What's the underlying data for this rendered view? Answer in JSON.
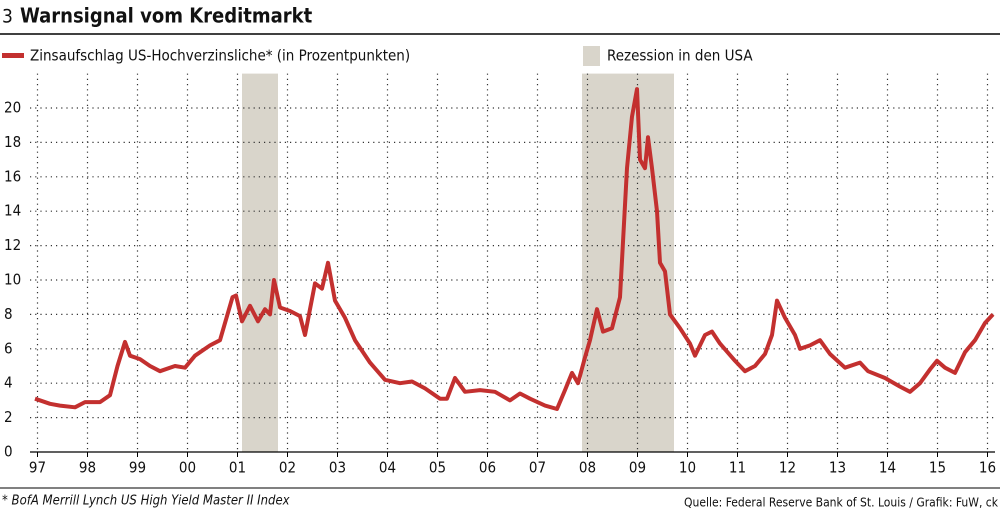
{
  "chart_data": {
    "type": "line",
    "number": "3",
    "title": "Warnsignal vom Kreditmarkt",
    "footnote": "* BofA Merrill Lynch US High Yield Master II Index",
    "source": "Quelle: Federal Reserve Bank of St. Louis / Grafik: FuW, ck",
    "shade_label": "Rezession in den USA",
    "shade_color": "#d9d5cb",
    "shades": [
      [
        2001.09,
        2001.81
      ],
      [
        2007.89,
        2009.73
      ]
    ],
    "x": [
      1996.95,
      1997.25,
      1997.45,
      1997.75,
      1997.95,
      1998.25,
      1998.45,
      1998.6,
      1998.75,
      1998.85,
      1999.05,
      1999.25,
      1999.45,
      1999.75,
      1999.95,
      2000.15,
      2000.45,
      2000.65,
      2000.9,
      2000.97,
      2001.09,
      2001.25,
      2001.41,
      2001.55,
      2001.65,
      2001.73,
      2001.85,
      2002.05,
      2002.25,
      2002.35,
      2002.55,
      2002.69,
      2002.81,
      2002.95,
      2003.15,
      2003.35,
      2003.65,
      2003.95,
      2004.25,
      2004.49,
      2004.75,
      2005.05,
      2005.19,
      2005.35,
      2005.55,
      2005.85,
      2006.15,
      2006.45,
      2006.65,
      2006.85,
      2007.15,
      2007.39,
      2007.55,
      2007.69,
      2007.81,
      2007.95,
      2008.05,
      2008.19,
      2008.31,
      2008.49,
      2008.65,
      2008.79,
      2008.89,
      2008.99,
      2009.05,
      2009.15,
      2009.21,
      2009.29,
      2009.39,
      2009.45,
      2009.55,
      2009.65,
      2009.85,
      2010.05,
      2010.15,
      2010.35,
      2010.49,
      2010.65,
      2010.95,
      2011.15,
      2011.35,
      2011.55,
      2011.69,
      2011.79,
      2011.95,
      2012.15,
      2012.25,
      2012.45,
      2012.65,
      2012.85,
      2013.15,
      2013.45,
      2013.61,
      2013.95,
      2014.25,
      2014.45,
      2014.65,
      2014.85,
      2014.99,
      2015.15,
      2015.35,
      2015.55,
      2015.75,
      2015.95,
      2016.11
    ],
    "series": [
      {
        "name": "Zinsaufschlag US-Hochverzinsliche* (in Prozentpunkten)",
        "color": "#c3302f",
        "values": [
          3.1,
          2.8,
          2.7,
          2.6,
          2.9,
          2.9,
          3.3,
          5.0,
          6.4,
          5.6,
          5.4,
          5.0,
          4.7,
          5.0,
          4.9,
          5.6,
          6.2,
          6.5,
          9.0,
          9.1,
          7.6,
          8.5,
          7.6,
          8.3,
          8.0,
          10.0,
          8.4,
          8.2,
          7.9,
          6.8,
          9.8,
          9.5,
          11.0,
          8.8,
          7.8,
          6.5,
          5.2,
          4.2,
          4.0,
          4.1,
          3.7,
          3.1,
          3.1,
          4.3,
          3.5,
          3.6,
          3.5,
          3.0,
          3.4,
          3.1,
          2.7,
          2.5,
          3.6,
          4.6,
          4.0,
          5.5,
          6.5,
          8.3,
          7.0,
          7.2,
          9.0,
          16.5,
          19.5,
          21.1,
          17.0,
          16.5,
          18.3,
          16.5,
          14.0,
          11.0,
          10.5,
          8.0,
          7.2,
          6.3,
          5.6,
          6.8,
          7.0,
          6.3,
          5.3,
          4.7,
          5.0,
          5.7,
          6.8,
          8.8,
          7.8,
          6.8,
          6.0,
          6.2,
          6.5,
          5.7,
          4.9,
          5.2,
          4.7,
          4.3,
          3.8,
          3.5,
          4.0,
          4.8,
          5.3,
          4.9,
          4.6,
          5.8,
          6.5,
          7.5,
          8.0
        ]
      }
    ],
    "xlim": [
      1996.85,
      2016.15
    ],
    "xticks": [
      {
        "value": 1997,
        "label": "97"
      },
      {
        "value": 1998,
        "label": "98"
      },
      {
        "value": 1999,
        "label": "99"
      },
      {
        "value": 2000,
        "label": "00"
      },
      {
        "value": 2001,
        "label": "01"
      },
      {
        "value": 2002,
        "label": "02"
      },
      {
        "value": 2003,
        "label": "03"
      },
      {
        "value": 2004,
        "label": "04"
      },
      {
        "value": 2005,
        "label": "05"
      },
      {
        "value": 2006,
        "label": "06"
      },
      {
        "value": 2007,
        "label": "07"
      },
      {
        "value": 2008,
        "label": "08"
      },
      {
        "value": 2009,
        "label": "09"
      },
      {
        "value": 2010,
        "label": "10"
      },
      {
        "value": 2011,
        "label": "11"
      },
      {
        "value": 2012,
        "label": "12"
      },
      {
        "value": 2013,
        "label": "13"
      },
      {
        "value": 2014,
        "label": "14"
      },
      {
        "value": 2015,
        "label": "15"
      },
      {
        "value": 2016,
        "label": "16"
      }
    ],
    "ylim": [
      0,
      22
    ],
    "yticks": [
      0,
      2,
      4,
      6,
      8,
      10,
      12,
      14,
      16,
      18,
      20
    ],
    "grid": true
  }
}
